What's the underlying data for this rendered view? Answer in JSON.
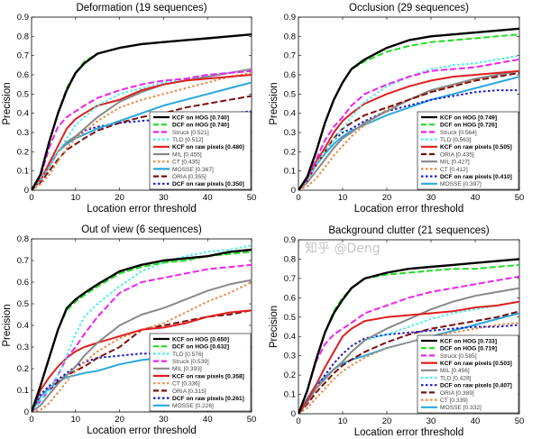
{
  "trackers": {
    "KCF on HOG": {
      "color": "#000000",
      "dash": "solid",
      "bold": true
    },
    "DCF on HOG": {
      "color": "#22dd22",
      "dash": "dashed",
      "bold": true
    },
    "Struck": {
      "color": "#ee22ee",
      "dash": "dashed",
      "bold": false
    },
    "TLD": {
      "color": "#44eeee",
      "dash": "dotted",
      "bold": false
    },
    "KCF on raw pixels": {
      "color": "#e01e1e",
      "dash": "solid",
      "bold": true
    },
    "MIL": {
      "color": "#888888",
      "dash": "solid",
      "bold": false
    },
    "CT": {
      "color": "#ee8844",
      "dash": "dotted",
      "bold": false
    },
    "MOSSE": {
      "color": "#2aa7dd",
      "dash": "solid",
      "bold": false
    },
    "ORIA": {
      "color": "#7a1010",
      "dash": "dashed",
      "bold": false
    },
    "DCF on raw pixels": {
      "color": "#1a1acc",
      "dash": "dotted",
      "bold": true
    }
  },
  "watermark": "知乎 @Deng",
  "chart_data": [
    {
      "type": "line",
      "title": "Deformation (19 sequences)",
      "xlabel": "Location error threshold",
      "ylabel": "Precision",
      "xlim": [
        0,
        50
      ],
      "ylim": [
        0,
        0.9
      ],
      "xticks": [
        0,
        10,
        20,
        30,
        40,
        50
      ],
      "yticks": [
        0,
        0.1,
        0.2,
        0.3,
        0.4,
        0.5,
        0.6,
        0.7,
        0.8,
        0.9
      ],
      "legend_position": "bottom-right",
      "x": [
        0,
        2,
        4,
        6,
        8,
        10,
        12,
        15,
        20,
        25,
        30,
        35,
        40,
        45,
        50
      ],
      "series": [
        {
          "name": "KCF on HOG",
          "legend": "KCF on HOG [0.740]",
          "values": [
            0,
            0.08,
            0.25,
            0.4,
            0.52,
            0.61,
            0.66,
            0.71,
            0.74,
            0.76,
            0.77,
            0.78,
            0.79,
            0.8,
            0.81
          ]
        },
        {
          "name": "DCF on HOG",
          "legend": "DCF on HOG [0.740]",
          "values": [
            0,
            0.08,
            0.25,
            0.4,
            0.53,
            0.61,
            0.67,
            0.71,
            0.74,
            0.76,
            0.77,
            0.78,
            0.79,
            0.8,
            0.81
          ]
        },
        {
          "name": "Struck",
          "legend": "Struck [0.521]",
          "values": [
            0,
            0.07,
            0.22,
            0.33,
            0.38,
            0.41,
            0.44,
            0.48,
            0.52,
            0.55,
            0.57,
            0.58,
            0.6,
            0.61,
            0.62
          ]
        },
        {
          "name": "TLD",
          "legend": "TLD [0.512]",
          "values": [
            0,
            0.05,
            0.12,
            0.2,
            0.27,
            0.34,
            0.38,
            0.44,
            0.5,
            0.53,
            0.56,
            0.58,
            0.6,
            0.61,
            0.62
          ]
        },
        {
          "name": "KCF on raw pixels",
          "legend": "KCF on raw pixels [0.480]",
          "values": [
            0,
            0.05,
            0.14,
            0.23,
            0.32,
            0.37,
            0.4,
            0.44,
            0.47,
            0.52,
            0.55,
            0.57,
            0.58,
            0.59,
            0.6
          ]
        },
        {
          "name": "MIL",
          "legend": "MIL [0.455]",
          "values": [
            0,
            0.05,
            0.12,
            0.2,
            0.25,
            0.28,
            0.32,
            0.38,
            0.46,
            0.51,
            0.55,
            0.57,
            0.59,
            0.61,
            0.63
          ]
        },
        {
          "name": "CT",
          "legend": "CT [0.435]",
          "values": [
            0,
            0.03,
            0.08,
            0.15,
            0.22,
            0.27,
            0.3,
            0.36,
            0.43,
            0.47,
            0.5,
            0.53,
            0.56,
            0.59,
            0.61
          ]
        },
        {
          "name": "MOSSE",
          "legend": "MOSSE [0.367]",
          "values": [
            0,
            0.05,
            0.12,
            0.2,
            0.24,
            0.27,
            0.29,
            0.32,
            0.36,
            0.4,
            0.44,
            0.47,
            0.5,
            0.53,
            0.56
          ]
        },
        {
          "name": "ORIA",
          "legend": "ORIA [0.355]",
          "values": [
            0,
            0.04,
            0.1,
            0.16,
            0.21,
            0.24,
            0.27,
            0.31,
            0.35,
            0.38,
            0.4,
            0.43,
            0.45,
            0.47,
            0.49
          ]
        },
        {
          "name": "DCF on raw pixels",
          "legend": "DCF on raw pixels [0.350]",
          "values": [
            0,
            0.05,
            0.13,
            0.2,
            0.25,
            0.28,
            0.31,
            0.33,
            0.35,
            0.36,
            0.37,
            0.38,
            0.39,
            0.4,
            0.41
          ]
        }
      ]
    },
    {
      "type": "line",
      "title": "Occlusion (29 sequences)",
      "xlabel": "Location error threshold",
      "ylabel": "Precision",
      "xlim": [
        0,
        50
      ],
      "ylim": [
        0,
        0.9
      ],
      "xticks": [
        0,
        10,
        20,
        30,
        40,
        50
      ],
      "yticks": [
        0,
        0.1,
        0.2,
        0.3,
        0.4,
        0.5,
        0.6,
        0.7,
        0.8,
        0.9
      ],
      "legend_position": "bottom-right",
      "x": [
        0,
        2,
        4,
        6,
        8,
        10,
        12,
        15,
        20,
        25,
        30,
        35,
        40,
        45,
        50
      ],
      "series": [
        {
          "name": "KCF on HOG",
          "legend": "KCF on HOG [0.749]",
          "values": [
            0,
            0.07,
            0.2,
            0.35,
            0.47,
            0.56,
            0.63,
            0.68,
            0.74,
            0.78,
            0.8,
            0.81,
            0.82,
            0.83,
            0.84
          ]
        },
        {
          "name": "DCF on HOG",
          "legend": "DCF on HOG [0.726]",
          "values": [
            0,
            0.07,
            0.2,
            0.35,
            0.47,
            0.56,
            0.63,
            0.67,
            0.72,
            0.75,
            0.77,
            0.78,
            0.79,
            0.8,
            0.81
          ]
        },
        {
          "name": "Struck",
          "legend": "Struck [0.564]",
          "values": [
            0,
            0.06,
            0.16,
            0.26,
            0.33,
            0.38,
            0.44,
            0.5,
            0.55,
            0.59,
            0.62,
            0.63,
            0.64,
            0.66,
            0.68
          ]
        },
        {
          "name": "TLD",
          "legend": "TLD [0.563]",
          "values": [
            0,
            0.05,
            0.13,
            0.2,
            0.26,
            0.32,
            0.38,
            0.46,
            0.54,
            0.59,
            0.63,
            0.65,
            0.66,
            0.68,
            0.7
          ]
        },
        {
          "name": "KCF on raw pixels",
          "legend": "KCF on raw pixels [0.505]",
          "values": [
            0,
            0.06,
            0.15,
            0.22,
            0.3,
            0.36,
            0.4,
            0.45,
            0.5,
            0.54,
            0.57,
            0.59,
            0.6,
            0.61,
            0.62
          ]
        },
        {
          "name": "ORIA",
          "legend": "ORIA [0.435]",
          "values": [
            0,
            0.05,
            0.13,
            0.2,
            0.27,
            0.32,
            0.35,
            0.39,
            0.43,
            0.47,
            0.51,
            0.54,
            0.57,
            0.59,
            0.61
          ]
        },
        {
          "name": "MIL",
          "legend": "MIL [0.427]",
          "values": [
            0,
            0.04,
            0.1,
            0.16,
            0.22,
            0.27,
            0.3,
            0.35,
            0.41,
            0.47,
            0.52,
            0.55,
            0.58,
            0.6,
            0.62
          ]
        },
        {
          "name": "CT",
          "legend": "CT [0.412]",
          "values": [
            0,
            0.02,
            0.06,
            0.12,
            0.18,
            0.23,
            0.28,
            0.34,
            0.42,
            0.47,
            0.51,
            0.54,
            0.57,
            0.6,
            0.62
          ]
        },
        {
          "name": "DCF on raw pixels",
          "legend": "DCF on raw pixels [0.410]",
          "values": [
            0,
            0.05,
            0.13,
            0.2,
            0.26,
            0.3,
            0.32,
            0.36,
            0.41,
            0.44,
            0.47,
            0.49,
            0.51,
            0.52,
            0.52
          ]
        },
        {
          "name": "MOSSE",
          "legend": "MOSSE [0.397]",
          "values": [
            0,
            0.06,
            0.13,
            0.19,
            0.24,
            0.28,
            0.31,
            0.34,
            0.39,
            0.43,
            0.47,
            0.5,
            0.53,
            0.56,
            0.59
          ]
        }
      ]
    },
    {
      "type": "line",
      "title": "Out of view (6 sequences)",
      "xlabel": "Location error threshold",
      "ylabel": "Precision",
      "xlim": [
        0,
        50
      ],
      "ylim": [
        0,
        0.8
      ],
      "xticks": [
        0,
        10,
        20,
        30,
        40,
        50
      ],
      "yticks": [
        0,
        0.1,
        0.2,
        0.3,
        0.4,
        0.5,
        0.6,
        0.7,
        0.8
      ],
      "legend_position": "bottom-right",
      "x": [
        0,
        2,
        4,
        6,
        8,
        10,
        12,
        15,
        20,
        25,
        30,
        35,
        40,
        45,
        50
      ],
      "series": [
        {
          "name": "KCF on HOG",
          "legend": "KCF on HOG [0.650]",
          "values": [
            0,
            0.12,
            0.25,
            0.38,
            0.48,
            0.52,
            0.55,
            0.59,
            0.65,
            0.68,
            0.7,
            0.71,
            0.72,
            0.74,
            0.75
          ]
        },
        {
          "name": "DCF on HOG",
          "legend": "DCF on HOG [0.632]",
          "values": [
            0,
            0.12,
            0.25,
            0.38,
            0.47,
            0.51,
            0.54,
            0.58,
            0.64,
            0.67,
            0.69,
            0.7,
            0.72,
            0.73,
            0.74
          ]
        },
        {
          "name": "TLD",
          "legend": "TLD [0.576]",
          "values": [
            0,
            0.05,
            0.1,
            0.17,
            0.26,
            0.36,
            0.44,
            0.5,
            0.58,
            0.65,
            0.69,
            0.72,
            0.74,
            0.75,
            0.77
          ]
        },
        {
          "name": "Struck",
          "legend": "Struck [0.539]",
          "values": [
            0,
            0.05,
            0.1,
            0.17,
            0.25,
            0.3,
            0.36,
            0.44,
            0.55,
            0.6,
            0.62,
            0.64,
            0.66,
            0.67,
            0.68
          ]
        },
        {
          "name": "MIL",
          "legend": "MIL [0.393]",
          "values": [
            0,
            0.03,
            0.08,
            0.13,
            0.17,
            0.21,
            0.26,
            0.32,
            0.4,
            0.45,
            0.48,
            0.52,
            0.56,
            0.59,
            0.61
          ]
        },
        {
          "name": "KCF on raw pixels",
          "legend": "KCF on raw pixels [0.358]",
          "values": [
            0,
            0.1,
            0.16,
            0.21,
            0.25,
            0.28,
            0.3,
            0.32,
            0.35,
            0.38,
            0.39,
            0.41,
            0.44,
            0.46,
            0.47
          ]
        },
        {
          "name": "CT",
          "legend": "CT [0.336]",
          "values": [
            0,
            0.01,
            0.04,
            0.09,
            0.14,
            0.19,
            0.23,
            0.28,
            0.34,
            0.38,
            0.41,
            0.46,
            0.51,
            0.55,
            0.6
          ]
        },
        {
          "name": "ORIA",
          "legend": "ORIA [0.315]",
          "values": [
            0,
            0.05,
            0.1,
            0.14,
            0.17,
            0.19,
            0.21,
            0.25,
            0.3,
            0.38,
            0.4,
            0.42,
            0.44,
            0.45,
            0.47
          ]
        },
        {
          "name": "DCF on raw pixels",
          "legend": "DCF on raw pixels [0.261]",
          "values": [
            0,
            0.08,
            0.12,
            0.15,
            0.18,
            0.21,
            0.23,
            0.25,
            0.26,
            0.27,
            0.27,
            0.27,
            0.28,
            0.29,
            0.3
          ]
        },
        {
          "name": "MOSSE",
          "legend": "MOSSE [0.226]",
          "values": [
            0,
            0.07,
            0.11,
            0.14,
            0.16,
            0.17,
            0.18,
            0.19,
            0.22,
            0.24,
            0.25,
            0.26,
            0.27,
            0.28,
            0.31
          ]
        }
      ]
    },
    {
      "type": "line",
      "title": "Background clutter (21 sequences)",
      "xlabel": "Location error threshold",
      "ylabel": "Precision",
      "xlim": [
        0,
        50
      ],
      "ylim": [
        0,
        0.9
      ],
      "xticks": [
        0,
        10,
        20,
        30,
        40,
        50
      ],
      "yticks": [
        0,
        0.1,
        0.2,
        0.3,
        0.4,
        0.5,
        0.6,
        0.7,
        0.8,
        0.9
      ],
      "legend_position": "bottom-right",
      "x": [
        0,
        2,
        4,
        6,
        8,
        10,
        12,
        15,
        20,
        25,
        30,
        35,
        40,
        45,
        50
      ],
      "series": [
        {
          "name": "KCF on HOG",
          "legend": "KCF on HOG [0.733]",
          "values": [
            0,
            0.12,
            0.28,
            0.42,
            0.52,
            0.59,
            0.65,
            0.7,
            0.73,
            0.75,
            0.76,
            0.77,
            0.78,
            0.79,
            0.8
          ]
        },
        {
          "name": "DCF on HOG",
          "legend": "DCF on HOG [0.719]",
          "values": [
            0,
            0.12,
            0.28,
            0.42,
            0.53,
            0.6,
            0.65,
            0.7,
            0.72,
            0.73,
            0.74,
            0.75,
            0.75,
            0.76,
            0.77
          ]
        },
        {
          "name": "Struck",
          "legend": "Struck [0.585]",
          "values": [
            0,
            0.12,
            0.27,
            0.36,
            0.41,
            0.44,
            0.47,
            0.52,
            0.56,
            0.6,
            0.63,
            0.65,
            0.67,
            0.69,
            0.71
          ]
        },
        {
          "name": "KCF on raw pixels",
          "legend": "KCF on raw pixels [0.503]",
          "values": [
            0,
            0.07,
            0.15,
            0.24,
            0.32,
            0.4,
            0.44,
            0.48,
            0.5,
            0.51,
            0.52,
            0.53,
            0.55,
            0.56,
            0.58
          ]
        },
        {
          "name": "MIL",
          "legend": "MIL [0.456]",
          "values": [
            0,
            0.06,
            0.13,
            0.18,
            0.23,
            0.27,
            0.32,
            0.38,
            0.44,
            0.49,
            0.54,
            0.58,
            0.61,
            0.63,
            0.65
          ]
        },
        {
          "name": "TLD",
          "legend": "TLD [0.428]",
          "values": [
            0,
            0.06,
            0.13,
            0.18,
            0.23,
            0.27,
            0.32,
            0.38,
            0.41,
            0.45,
            0.49,
            0.52,
            0.54,
            0.56,
            0.58
          ]
        },
        {
          "name": "DCF on raw pixels",
          "legend": "DCF on raw pixels [0.407]",
          "values": [
            0,
            0.06,
            0.13,
            0.2,
            0.26,
            0.31,
            0.35,
            0.39,
            0.41,
            0.42,
            0.43,
            0.44,
            0.45,
            0.45,
            0.46
          ]
        },
        {
          "name": "ORIA",
          "legend": "ORIA [0.389]",
          "values": [
            0,
            0.05,
            0.11,
            0.16,
            0.21,
            0.25,
            0.28,
            0.32,
            0.37,
            0.41,
            0.44,
            0.46,
            0.48,
            0.5,
            0.53
          ]
        },
        {
          "name": "CT",
          "legend": "CT [0.339]",
          "values": [
            0,
            0.03,
            0.08,
            0.13,
            0.18,
            0.22,
            0.25,
            0.29,
            0.34,
            0.37,
            0.4,
            0.42,
            0.44,
            0.46,
            0.47
          ]
        },
        {
          "name": "MOSSE",
          "legend": "MOSSE [0.332]",
          "values": [
            0,
            0.08,
            0.15,
            0.19,
            0.23,
            0.26,
            0.28,
            0.3,
            0.34,
            0.37,
            0.4,
            0.43,
            0.46,
            0.49,
            0.52
          ]
        }
      ]
    }
  ]
}
